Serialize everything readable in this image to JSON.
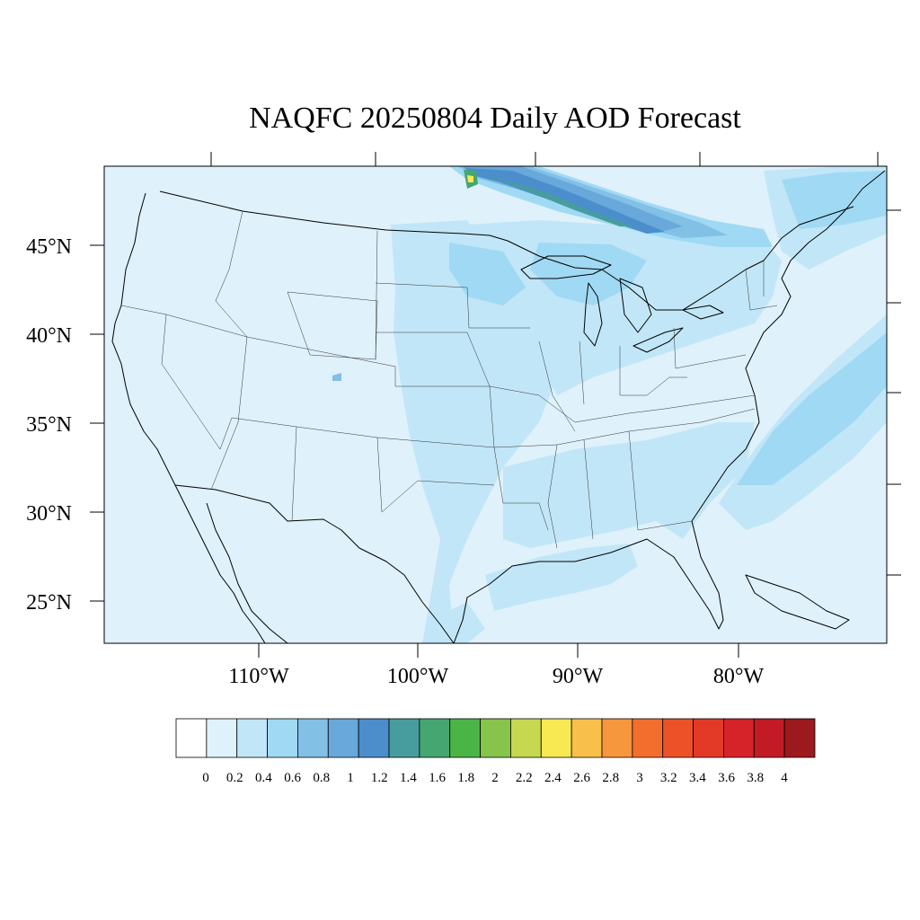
{
  "title": "NAQFC 20250804 Daily AOD Forecast",
  "latitude_labels": [
    "45°N",
    "40°N",
    "35°N",
    "30°N",
    "25°N"
  ],
  "longitude_labels": [
    "110°W",
    "100°W",
    "90°W",
    "80°W"
  ],
  "colorbar": {
    "labels": [
      "0",
      "0.2",
      "0.4",
      "0.6",
      "0.8",
      "1",
      "1.2",
      "1.4",
      "1.6",
      "1.8",
      "2",
      "2.2",
      "2.4",
      "2.6",
      "2.8",
      "3",
      "3.2",
      "3.4",
      "3.6",
      "3.8",
      "4"
    ],
    "colors": [
      "#ffffff",
      "#dff1fb",
      "#c1e6f7",
      "#a0d9f4",
      "#82c0e6",
      "#68a8db",
      "#4b8ecb",
      "#479d9e",
      "#45a671",
      "#4bb447",
      "#86c44b",
      "#c5d84f",
      "#f8e852",
      "#f8c04a",
      "#f6963d",
      "#f36e2d",
      "#ec5128",
      "#e23a27",
      "#d52329",
      "#c21b26",
      "#9c1a1d"
    ]
  },
  "chart_data": {
    "type": "heatmap",
    "title": "NAQFC 20250804 Daily AOD Forecast",
    "variable": "AOD",
    "date": "20250804",
    "lat_ticks": [
      45,
      40,
      35,
      30,
      25
    ],
    "lon_ticks": [
      -110,
      -100,
      -90,
      -80
    ],
    "levels": [
      0,
      0.2,
      0.4,
      0.6,
      0.8,
      1,
      1.2,
      1.4,
      1.6,
      1.8,
      2,
      2.2,
      2.4,
      2.6,
      2.8,
      3,
      3.2,
      3.4,
      3.6,
      3.8,
      4
    ],
    "background_aod": 0.1,
    "features": [
      {
        "region": "Northern Plains to Great Lakes smoke plume",
        "aod": 0.6
      },
      {
        "region": "Canadian border plume (Lake Superior north)",
        "aod": 1.4
      },
      {
        "region": "Plume core near Lake of the Woods",
        "aod": 2.3
      },
      {
        "region": "Atlantic offshore plume",
        "aod": 0.6
      },
      {
        "region": "Central Plains / Texas",
        "aod": 0.3
      },
      {
        "region": "Gulf of Mexico",
        "aod": 0.3
      }
    ]
  }
}
